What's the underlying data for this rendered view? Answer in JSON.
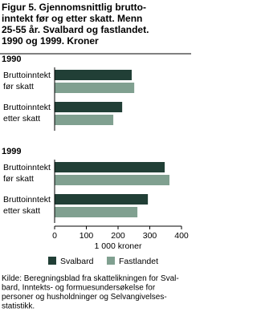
{
  "title": "Figur 5. Gjennomsnittlig brutto-\ninntekt før og etter skatt. Menn\n25-55 år. Svalbard og fastlandet.\n1990 og 1999. Kroner",
  "source": "Kilde: Beregningsblad fra skattelikningen for Sval-\nbard, Inntekts- og formuesundersøkelse for\npersoner og husholdninger og Selvangivelses-\nstatistikk.",
  "chart_data": [
    {
      "type": "bar",
      "orientation": "horizontal",
      "title": "1990",
      "categories": [
        "Bruttoinntekt\nfør skatt",
        "Bruttoinntekt\netter skatt"
      ],
      "series": [
        {
          "name": "Svalbard",
          "color": "#213f36",
          "values": [
            243,
            213
          ]
        },
        {
          "name": "Fastlandet",
          "color": "#80a090",
          "values": [
            251,
            185
          ]
        }
      ],
      "xlim": [
        0,
        400
      ]
    },
    {
      "type": "bar",
      "orientation": "horizontal",
      "title": "1999",
      "categories": [
        "Bruttoinntekt\nfør skatt",
        "Bruttoinntekt\netter skatt"
      ],
      "series": [
        {
          "name": "Svalbard",
          "color": "#213f36",
          "values": [
            347,
            294
          ]
        },
        {
          "name": "Fastlandet",
          "color": "#80a090",
          "values": [
            362,
            261
          ]
        }
      ],
      "xlim": [
        0,
        400
      ],
      "xticks": [
        0,
        100,
        200,
        300,
        400
      ],
      "xlabel": "1 000 kroner",
      "legend": "bottom"
    }
  ]
}
